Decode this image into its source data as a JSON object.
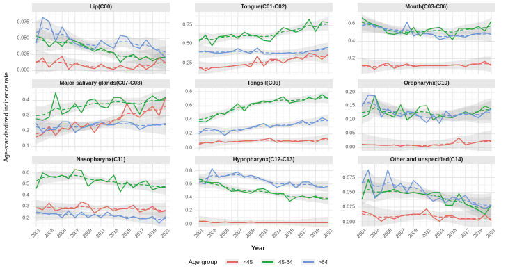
{
  "chart_data": {
    "type": "line",
    "title": "",
    "xlabel": "Year",
    "ylabel": "Age-standardized incidence rate",
    "grid": true,
    "legend_position": "bottom",
    "x": [
      2001,
      2002,
      2003,
      2004,
      2005,
      2006,
      2007,
      2008,
      2009,
      2010,
      2011,
      2012,
      2013,
      2014,
      2015,
      2016,
      2017,
      2018,
      2019,
      2020,
      2021
    ],
    "xtick_labels": [
      "2001",
      "2003",
      "2005",
      "2007",
      "2009",
      "2011",
      "2013",
      "2015",
      "2017",
      "2019",
      "2021"
    ],
    "legend": {
      "title": "Age group",
      "entries": [
        {
          "label": "<45",
          "color": "#e0685f"
        },
        {
          "label": "45-64",
          "color": "#26a53e"
        },
        {
          "label": ">64",
          "color": "#6d96d6"
        }
      ]
    },
    "ribbon_color": "#8a8a8a",
    "facets": [
      {
        "title": "Lip(C00)",
        "ylim": [
          -0.006,
          0.092
        ],
        "yticks": [
          0.0,
          0.025,
          0.05,
          0.075
        ],
        "ytick_labels": [
          "0.000",
          "0.025",
          "0.050",
          "0.075"
        ],
        "band": 0.105,
        "series": [
          {
            "name": "<45",
            "values": [
              0.012,
              0.02,
              0.005,
              0.015,
              0.022,
              0.002,
              0.012,
              0.008,
              0.005,
              0.003,
              0.01,
              0.004,
              0.002,
              0.008,
              0.004,
              0.002,
              0.01,
              0.002,
              0.008,
              0.02,
              0.012
            ]
          },
          {
            "name": "45-64",
            "values": [
              0.054,
              0.051,
              0.037,
              0.046,
              0.038,
              0.05,
              0.046,
              0.042,
              0.035,
              0.03,
              0.035,
              0.03,
              0.028,
              0.013,
              0.022,
              0.025,
              0.017,
              0.022,
              0.015,
              0.02,
              0.021
            ]
          },
          {
            "name": ">64",
            "values": [
              0.043,
              0.083,
              0.077,
              0.046,
              0.068,
              0.052,
              0.042,
              0.038,
              0.034,
              0.033,
              0.047,
              0.04,
              0.035,
              0.055,
              0.053,
              0.038,
              0.035,
              0.048,
              0.035,
              0.03,
              0.02
            ]
          }
        ]
      },
      {
        "title": "Tongue(C01-C02)",
        "ylim": [
          0.1,
          0.93
        ],
        "yticks": [
          0.25,
          0.5,
          0.75
        ],
        "ytick_labels": [
          "0.25",
          "0.50",
          "0.75"
        ],
        "band": 0.06,
        "series": [
          {
            "name": "<45",
            "values": [
              0.2,
              0.15,
              0.19,
              0.19,
              0.2,
              0.21,
              0.22,
              0.23,
              0.2,
              0.34,
              0.21,
              0.3,
              0.3,
              0.25,
              0.3,
              0.33,
              0.3,
              0.38,
              0.36,
              0.3,
              0.37
            ]
          },
          {
            "name": "45-64",
            "values": [
              0.54,
              0.62,
              0.48,
              0.6,
              0.61,
              0.63,
              0.58,
              0.66,
              0.62,
              0.61,
              0.55,
              0.54,
              0.64,
              0.72,
              0.69,
              0.66,
              0.7,
              0.83,
              0.67,
              0.8,
              0.79
            ]
          },
          {
            "name": ">64",
            "values": [
              0.4,
              0.41,
              0.39,
              0.38,
              0.39,
              0.4,
              0.44,
              0.4,
              0.38,
              0.45,
              0.37,
              0.37,
              0.38,
              0.38,
              0.39,
              0.37,
              0.38,
              0.41,
              0.42,
              0.44,
              0.46
            ]
          }
        ]
      },
      {
        "title": "Mouth(C03-C06)",
        "ylim": [
          0.02,
          0.74
        ],
        "yticks": [
          0.2,
          0.4,
          0.6
        ],
        "ytick_labels": [
          "0.2",
          "0.4",
          "0.6"
        ],
        "band": 0.07,
        "series": [
          {
            "name": "<45",
            "values": [
              0.12,
              0.12,
              0.08,
              0.13,
              0.15,
              0.09,
              0.12,
              0.14,
              0.11,
              0.12,
              0.12,
              0.12,
              0.12,
              0.12,
              0.13,
              0.13,
              0.11,
              0.14,
              0.14,
              0.17,
              0.12
            ]
          },
          {
            "name": "45-64",
            "values": [
              0.67,
              0.62,
              0.59,
              0.57,
              0.49,
              0.48,
              0.5,
              0.48,
              0.56,
              0.46,
              0.53,
              0.55,
              0.56,
              0.5,
              0.42,
              0.55,
              0.55,
              0.54,
              0.57,
              0.52,
              0.63
            ]
          },
          {
            "name": ">64",
            "values": [
              0.58,
              0.61,
              0.58,
              0.56,
              0.52,
              0.52,
              0.49,
              0.62,
              0.46,
              0.5,
              0.49,
              0.48,
              0.42,
              0.44,
              0.47,
              0.46,
              0.45,
              0.48,
              0.49,
              0.5,
              0.48
            ]
          }
        ]
      },
      {
        "title": "Major salivary glands(C07-C08)",
        "ylim": [
          0.07,
          0.48
        ],
        "yticks": [
          0.1,
          0.2,
          0.3,
          0.4
        ],
        "ytick_labels": [
          "0.1",
          "0.2",
          "0.3",
          "0.4"
        ],
        "band": 0.09,
        "series": [
          {
            "name": "<45",
            "values": [
              0.16,
              0.18,
              0.23,
              0.17,
              0.22,
              0.21,
              0.26,
              0.22,
              0.25,
              0.19,
              0.25,
              0.24,
              0.27,
              0.28,
              0.38,
              0.31,
              0.29,
              0.33,
              0.36,
              0.3,
              0.42
            ]
          },
          {
            "name": "45-64",
            "values": [
              0.28,
              0.27,
              0.29,
              0.45,
              0.31,
              0.33,
              0.38,
              0.32,
              0.4,
              0.41,
              0.36,
              0.35,
              0.42,
              0.42,
              0.38,
              0.38,
              0.31,
              0.4,
              0.43,
              0.4,
              0.42
            ]
          },
          {
            "name": ">64",
            "values": [
              0.25,
              0.19,
              0.21,
              0.21,
              0.26,
              0.26,
              0.19,
              0.22,
              0.23,
              0.25,
              0.26,
              0.24,
              0.24,
              0.26,
              0.26,
              0.25,
              0.21,
              0.23,
              0.24,
              0.24,
              0.25
            ]
          }
        ]
      },
      {
        "title": "Tongsil(C09)",
        "ylim": [
          -0.04,
          0.85
        ],
        "yticks": [
          0.0,
          0.2,
          0.4,
          0.6,
          0.8
        ],
        "ytick_labels": [
          "0.0",
          "0.2",
          "0.4",
          "0.6",
          "0.8"
        ],
        "band": 0.05,
        "series": [
          {
            "name": "<45",
            "values": [
              0.05,
              0.08,
              0.07,
              0.1,
              0.08,
              0.09,
              0.09,
              0.1,
              0.1,
              0.11,
              0.12,
              0.14,
              0.08,
              0.1,
              0.1,
              0.09,
              0.1,
              0.11,
              0.08,
              0.13,
              0.14
            ]
          },
          {
            "name": "45-64",
            "values": [
              0.38,
              0.37,
              0.43,
              0.5,
              0.48,
              0.55,
              0.63,
              0.53,
              0.63,
              0.64,
              0.67,
              0.65,
              0.69,
              0.73,
              0.64,
              0.66,
              0.67,
              0.72,
              0.69,
              0.76,
              0.7
            ]
          },
          {
            "name": ">64",
            "values": [
              0.2,
              0.28,
              0.27,
              0.25,
              0.18,
              0.25,
              0.24,
              0.27,
              0.29,
              0.32,
              0.35,
              0.29,
              0.33,
              0.31,
              0.32,
              0.35,
              0.39,
              0.33,
              0.37,
              0.43,
              0.39
            ]
          }
        ]
      },
      {
        "title": "Oropharynx(C10)",
        "ylim": [
          -0.012,
          0.215
        ],
        "yticks": [
          0.0,
          0.05,
          0.1,
          0.15,
          0.2
        ],
        "ytick_labels": [
          "0.00",
          "0.05",
          "0.10",
          "0.15",
          "0.20"
        ],
        "band": 0.1,
        "series": [
          {
            "name": "<45",
            "values": [
              0.012,
              0.01,
              0.01,
              0.008,
              0.008,
              0.01,
              0.005,
              0.01,
              0.008,
              0.005,
              0.003,
              0.01,
              0.008,
              0.01,
              0.015,
              0.035,
              0.01,
              0.015,
              0.02,
              0.025,
              0.024
            ]
          },
          {
            "name": "45-64",
            "values": [
              0.11,
              0.12,
              0.19,
              0.13,
              0.12,
              0.11,
              0.155,
              0.1,
              0.12,
              0.15,
              0.152,
              0.1,
              0.115,
              0.11,
              0.108,
              0.12,
              0.13,
              0.12,
              0.13,
              0.15,
              0.14
            ]
          },
          {
            "name": ">64",
            "values": [
              0.15,
              0.19,
              0.188,
              0.11,
              0.14,
              0.12,
              0.112,
              0.13,
              0.128,
              0.11,
              0.09,
              0.12,
              0.088,
              0.132,
              0.11,
              0.12,
              0.128,
              0.118,
              0.108,
              0.128,
              0.14
            ]
          }
        ]
      },
      {
        "title": "Nasopharynx(C11)",
        "ylim": [
          0.12,
          0.68
        ],
        "yticks": [
          0.2,
          0.3,
          0.4,
          0.5,
          0.6
        ],
        "ytick_labels": [
          "0.2",
          "0.3",
          "0.4",
          "0.5",
          "0.6"
        ],
        "band": 0.07,
        "series": [
          {
            "name": "<45",
            "values": [
              0.29,
              0.27,
              0.33,
              0.26,
              0.28,
              0.28,
              0.28,
              0.34,
              0.32,
              0.24,
              0.28,
              0.3,
              0.26,
              0.28,
              0.28,
              0.31,
              0.25,
              0.27,
              0.3,
              0.25,
              0.26
            ]
          },
          {
            "name": "45-64",
            "values": [
              0.46,
              0.6,
              0.57,
              0.56,
              0.58,
              0.55,
              0.63,
              0.62,
              0.48,
              0.53,
              0.54,
              0.52,
              0.58,
              0.43,
              0.52,
              0.47,
              0.51,
              0.53,
              0.45,
              0.47,
              0.47
            ]
          },
          {
            "name": ">64",
            "values": [
              0.25,
              0.24,
              0.23,
              0.24,
              0.2,
              0.26,
              0.2,
              0.25,
              0.2,
              0.23,
              0.2,
              0.25,
              0.21,
              0.22,
              0.19,
              0.21,
              0.19,
              0.19,
              0.21,
              0.15,
              0.21
            ]
          }
        ]
      },
      {
        "title": "Hypopharynx(C12-C13)",
        "ylim": [
          -0.04,
          0.9
        ],
        "yticks": [
          0.0,
          0.2,
          0.4,
          0.6,
          0.8
        ],
        "ytick_labels": [
          "0.0",
          "0.2",
          "0.4",
          "0.6",
          "0.8"
        ],
        "band": 0.05,
        "series": [
          {
            "name": "<45",
            "values": [
              0.04,
              0.04,
              0.02,
              0.02,
              0.03,
              0.02,
              0.02,
              0.02,
              0.03,
              0.02,
              0.02,
              0.02,
              0.02,
              0.02,
              0.02,
              0.02,
              0.02,
              0.02,
              0.02,
              0.02,
              0.02
            ]
          },
          {
            "name": "45-64",
            "values": [
              0.68,
              0.63,
              0.62,
              0.62,
              0.55,
              0.49,
              0.5,
              0.48,
              0.46,
              0.52,
              0.53,
              0.47,
              0.45,
              0.46,
              0.34,
              0.4,
              0.42,
              0.39,
              0.42,
              0.37,
              0.37
            ]
          },
          {
            "name": ">64",
            "values": [
              0.62,
              0.6,
              0.83,
              0.7,
              0.72,
              0.75,
              0.78,
              0.7,
              0.73,
              0.7,
              0.66,
              0.62,
              0.55,
              0.58,
              0.63,
              0.54,
              0.63,
              0.63,
              0.56,
              0.55,
              0.54
            ]
          }
        ]
      },
      {
        "title": "Other and unspecified(C14)",
        "ylim": [
          -0.008,
          0.098
        ],
        "yticks": [
          0.0,
          0.025,
          0.05,
          0.075
        ],
        "ytick_labels": [
          "0.000",
          "0.025",
          "0.050",
          "0.075"
        ],
        "band": 0.11,
        "series": [
          {
            "name": "<45",
            "values": [
              0.018,
              0.015,
              0.01,
              0.001,
              0.008,
              0.005,
              0.01,
              0.012,
              0.013,
              0.013,
              0.022,
              0.008,
              0.001,
              0.01,
              0.01,
              0.005,
              0.005,
              0.005,
              0.003,
              0.012,
              0.002
            ]
          },
          {
            "name": "45-64",
            "values": [
              0.038,
              0.072,
              0.042,
              0.05,
              0.052,
              0.055,
              0.05,
              0.048,
              0.05,
              0.048,
              0.046,
              0.05,
              0.05,
              0.028,
              0.028,
              0.048,
              0.03,
              0.025,
              0.02,
              0.013,
              0.028
            ]
          },
          {
            "name": ">64",
            "values": [
              0.065,
              0.088,
              0.04,
              0.05,
              0.088,
              0.057,
              0.065,
              0.05,
              0.07,
              0.06,
              0.045,
              0.035,
              0.04,
              0.033,
              0.042,
              0.038,
              0.045,
              0.03,
              0.028,
              0.022,
              0.028
            ]
          }
        ]
      }
    ]
  }
}
